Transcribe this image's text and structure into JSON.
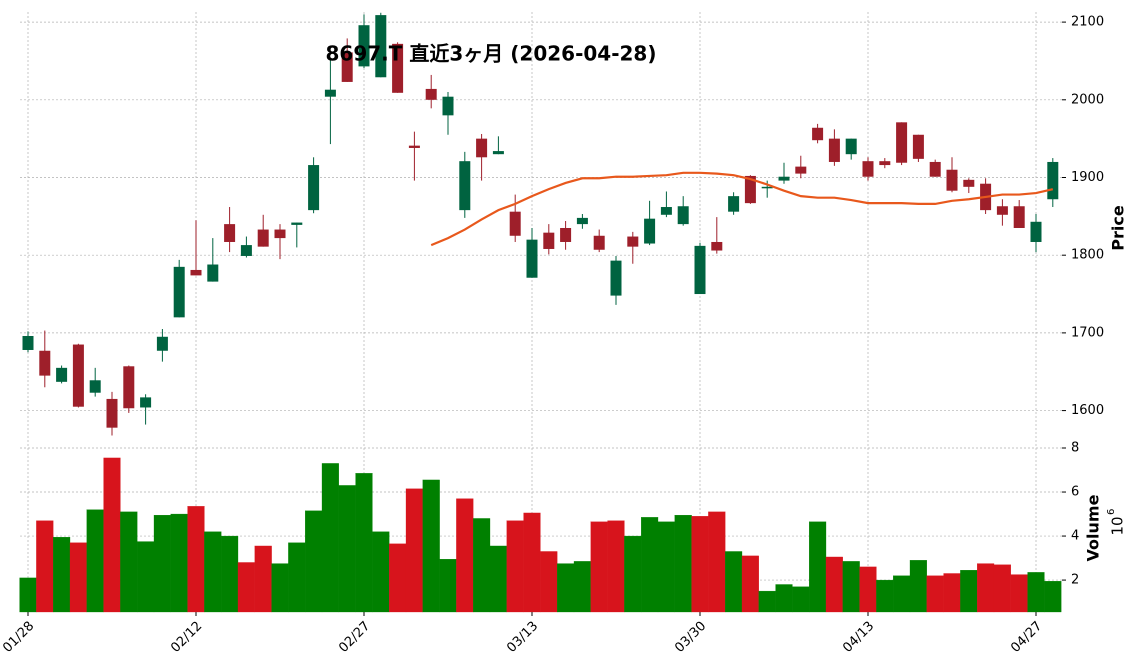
{
  "chart_data": {
    "type": "candlestick",
    "title": "8697.T  直近3ヶ月 (2026-04-28)",
    "categories": [
      "01/28",
      null,
      null,
      null,
      null,
      null,
      null,
      null,
      null,
      null,
      "02/12",
      null,
      null,
      null,
      null,
      null,
      null,
      null,
      null,
      null,
      "02/27",
      null,
      null,
      null,
      null,
      null,
      null,
      null,
      null,
      null,
      "03/13",
      null,
      null,
      null,
      null,
      null,
      null,
      null,
      null,
      null,
      "03/30",
      null,
      null,
      null,
      null,
      null,
      null,
      null,
      null,
      null,
      "04/13",
      null,
      null,
      null,
      null,
      null,
      null,
      null,
      null,
      null,
      "04/27",
      null
    ],
    "open": [
      1678,
      1677,
      1637,
      1685,
      1623,
      1615,
      1657,
      1604,
      1677,
      1720,
      1781,
      1766,
      1840,
      1799,
      1833,
      1833,
      1839,
      1858,
      2004,
      2061,
      2043,
      2029,
      2072,
      1941,
      2014,
      1980,
      1858,
      1950,
      1930,
      1856,
      1771,
      1829,
      1835,
      1840,
      1825,
      1748,
      1824,
      1815,
      1852,
      1840,
      1750,
      1817,
      1856,
      1902,
      1887,
      1896,
      1914,
      1964,
      1950,
      1930,
      1921,
      1921,
      1971,
      1955,
      1920,
      1910,
      1897,
      1892,
      1863,
      1863,
      1817,
      1872
    ],
    "high": [
      1702,
      1703,
      1658,
      1686,
      1655,
      1624,
      1658,
      1621,
      1705,
      1794,
      1845,
      1822,
      1862,
      1824,
      1852,
      1840,
      1842,
      1926,
      2052,
      2079,
      2110,
      2112,
      2074,
      1959,
      2032,
      2010,
      1933,
      1956,
      1953,
      1878,
      1835,
      1840,
      1844,
      1853,
      1833,
      1799,
      1830,
      1870,
      1882,
      1876,
      1816,
      1849,
      1881,
      1903,
      1896,
      1919,
      1928,
      1969,
      1962,
      1950,
      1926,
      1925,
      1971,
      1955,
      1923,
      1926,
      1899,
      1899,
      1872,
      1871,
      1853,
      1925
    ],
    "low": [
      1675,
      1630,
      1635,
      1604,
      1618,
      1568,
      1597,
      1582,
      1663,
      1720,
      1774,
      1766,
      1804,
      1797,
      1811,
      1795,
      1810,
      1854,
      1943,
      2023,
      2041,
      2029,
      2009,
      1896,
      1989,
      1955,
      1848,
      1896,
      1930,
      1817,
      1771,
      1801,
      1807,
      1834,
      1804,
      1736,
      1789,
      1813,
      1849,
      1838,
      1750,
      1802,
      1852,
      1866,
      1874,
      1892,
      1899,
      1944,
      1915,
      1923,
      1896,
      1912,
      1916,
      1920,
      1901,
      1881,
      1880,
      1853,
      1838,
      1835,
      1804,
      1862
    ],
    "close": [
      1696,
      1645,
      1655,
      1605,
      1639,
      1578,
      1603,
      1617,
      1695,
      1785,
      1774,
      1788,
      1817,
      1813,
      1811,
      1822,
      1842,
      1916,
      2013,
      2023,
      2096,
      2109,
      2009,
      1938,
      2000,
      2004,
      1921,
      1926,
      1934,
      1825,
      1820,
      1808,
      1817,
      1848,
      1807,
      1793,
      1811,
      1847,
      1862,
      1863,
      1812,
      1806,
      1876,
      1867,
      1888,
      1901,
      1905,
      1948,
      1920,
      1950,
      1901,
      1916,
      1919,
      1924,
      1901,
      1883,
      1888,
      1858,
      1852,
      1835,
      1843,
      1920
    ],
    "candle_colors": {
      "up": "#006340",
      "down": "#9e1f2a"
    },
    "ma": {
      "color": "#e8581c",
      "values": [
        null,
        null,
        null,
        null,
        null,
        null,
        null,
        null,
        null,
        null,
        null,
        null,
        null,
        null,
        null,
        null,
        null,
        null,
        null,
        null,
        null,
        null,
        null,
        null,
        1813,
        1822,
        1833,
        1846,
        1858,
        1866,
        1876,
        1885,
        1893,
        1899,
        1899,
        1901,
        1901,
        1902,
        1903,
        1906,
        1906,
        1905,
        1903,
        1898,
        1891,
        1883,
        1876,
        1874,
        1874,
        1871,
        1867,
        1867,
        1867,
        1866,
        1866,
        1870,
        1872,
        1875,
        1878,
        1878,
        1880,
        1885
      ]
    },
    "ylim": [
      1566,
      2113
    ],
    "yticks": [
      1600,
      1700,
      1800,
      1900,
      2000,
      2100
    ],
    "ylabel": "Price",
    "volume": {
      "values": [
        2.1,
        4.7,
        3.95,
        3.7,
        5.2,
        7.55,
        5.1,
        3.75,
        4.95,
        5.0,
        5.35,
        4.2,
        4.0,
        2.8,
        3.55,
        2.75,
        3.7,
        5.15,
        7.3,
        6.3,
        6.85,
        4.2,
        3.65,
        6.15,
        6.55,
        2.95,
        5.7,
        4.8,
        3.55,
        4.7,
        5.05,
        3.3,
        2.75,
        2.85,
        4.65,
        4.7,
        4.0,
        4.85,
        4.65,
        4.95,
        4.9,
        5.1,
        3.3,
        3.1,
        1.5,
        1.8,
        1.7,
        4.65,
        3.05,
        2.85,
        2.6,
        2.0,
        2.2,
        2.9,
        2.2,
        2.3,
        2.45,
        2.75,
        2.7,
        2.25,
        2.35,
        1.95
      ],
      "colors": {
        "up": "#008000",
        "down": "#d7141c"
      },
      "ylim": [
        0.55,
        8.5
      ],
      "yticks": [
        2,
        4,
        6,
        8
      ],
      "ylabel": "Volume",
      "offset_base": "10",
      "offset_exponent": "6"
    },
    "grid": true
  }
}
